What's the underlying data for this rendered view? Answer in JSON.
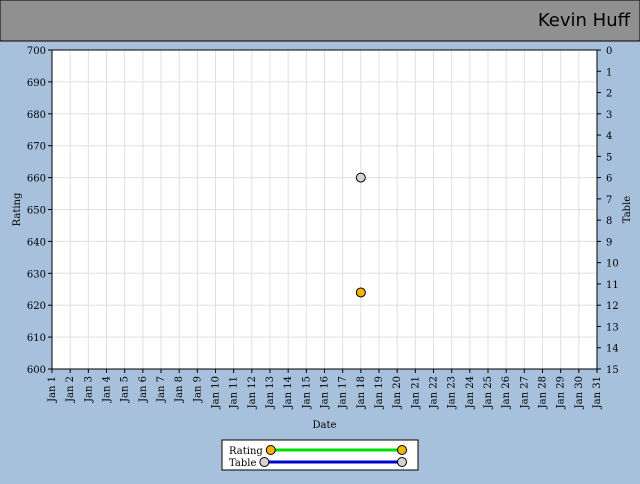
{
  "header": {
    "title": "Kevin Huff"
  },
  "chart_data": {
    "type": "line",
    "x_label": "Date",
    "y_label": "Rating",
    "y2_label": "Table",
    "categories": [
      "Jan 1",
      "Jan 2",
      "Jan 3",
      "Jan 4",
      "Jan 5",
      "Jan 6",
      "Jan 7",
      "Jan 8",
      "Jan 9",
      "Jan 10",
      "Jan 11",
      "Jan 12",
      "Jan 13",
      "Jan 14",
      "Jan 15",
      "Jan 16",
      "Jan 17",
      "Jan 18",
      "Jan 19",
      "Jan 20",
      "Jan 21",
      "Jan 22",
      "Jan 23",
      "Jan 24",
      "Jan 25",
      "Jan 26",
      "Jan 27",
      "Jan 28",
      "Jan 29",
      "Jan 30",
      "Jan 31"
    ],
    "series": [
      {
        "name": "Rating",
        "color": "#00dd00",
        "marker_color": "#f5b400",
        "values": [
          null,
          null,
          null,
          null,
          null,
          null,
          null,
          null,
          null,
          null,
          null,
          null,
          null,
          null,
          null,
          null,
          null,
          624,
          null,
          null,
          null,
          null,
          null,
          null,
          null,
          null,
          null,
          null,
          null,
          null,
          null
        ]
      },
      {
        "name": "Table",
        "color": "#0000cc",
        "marker_color": "#d4d4d4",
        "axis": "y2",
        "values": [
          null,
          null,
          null,
          null,
          null,
          null,
          null,
          null,
          null,
          null,
          null,
          null,
          null,
          null,
          null,
          null,
          null,
          6,
          null,
          null,
          null,
          null,
          null,
          null,
          null,
          null,
          null,
          null,
          null,
          null,
          null
        ]
      }
    ],
    "ylim": [
      600,
      700
    ],
    "yticks": [
      600,
      610,
      620,
      630,
      640,
      650,
      660,
      670,
      680,
      690,
      700
    ],
    "y2lim": [
      15,
      0
    ],
    "y2ticks": [
      0,
      1,
      2,
      3,
      4,
      5,
      6,
      7,
      8,
      9,
      10,
      11,
      12,
      13,
      14,
      15
    ],
    "grid": true
  }
}
